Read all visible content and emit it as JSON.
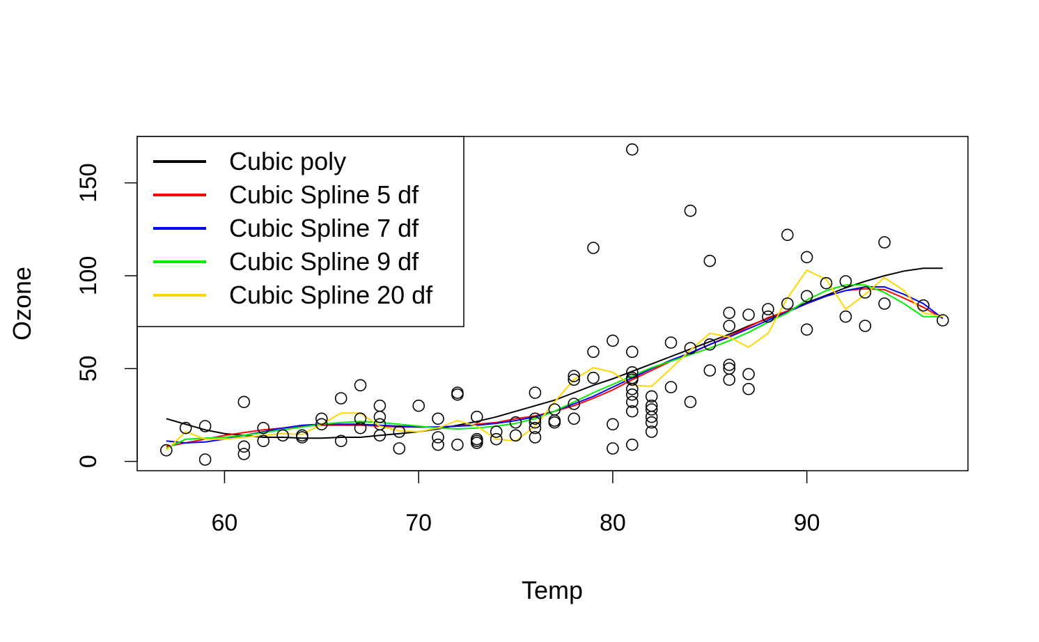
{
  "chart_data": {
    "type": "scatter",
    "title": "",
    "xlabel": "Temp",
    "ylabel": "Ozone",
    "xlim": [
      55.5,
      98.3
    ],
    "ylim": [
      -5,
      175
    ],
    "x_ticks": [
      60,
      70,
      80,
      90
    ],
    "y_ticks": [
      0,
      50,
      100,
      150
    ],
    "grid": false,
    "legend_position": "top-left",
    "points": [
      {
        "x": 57,
        "y": 6
      },
      {
        "x": 58,
        "y": 18
      },
      {
        "x": 59,
        "y": 19
      },
      {
        "x": 59,
        "y": 1
      },
      {
        "x": 61,
        "y": 32
      },
      {
        "x": 61,
        "y": 8
      },
      {
        "x": 61,
        "y": 4
      },
      {
        "x": 62,
        "y": 18
      },
      {
        "x": 62,
        "y": 11
      },
      {
        "x": 63,
        "y": 14
      },
      {
        "x": 64,
        "y": 14
      },
      {
        "x": 64,
        "y": 13
      },
      {
        "x": 65,
        "y": 23
      },
      {
        "x": 65,
        "y": 20
      },
      {
        "x": 66,
        "y": 34
      },
      {
        "x": 66,
        "y": 11
      },
      {
        "x": 67,
        "y": 41
      },
      {
        "x": 67,
        "y": 23
      },
      {
        "x": 67,
        "y": 18
      },
      {
        "x": 68,
        "y": 30
      },
      {
        "x": 68,
        "y": 24
      },
      {
        "x": 68,
        "y": 20
      },
      {
        "x": 68,
        "y": 14
      },
      {
        "x": 69,
        "y": 16
      },
      {
        "x": 69,
        "y": 7
      },
      {
        "x": 70,
        "y": 30
      },
      {
        "x": 71,
        "y": 23
      },
      {
        "x": 71,
        "y": 13
      },
      {
        "x": 71,
        "y": 9
      },
      {
        "x": 72,
        "y": 37
      },
      {
        "x": 72,
        "y": 36
      },
      {
        "x": 72,
        "y": 9
      },
      {
        "x": 73,
        "y": 24
      },
      {
        "x": 73,
        "y": 12
      },
      {
        "x": 73,
        "y": 11
      },
      {
        "x": 73,
        "y": 10
      },
      {
        "x": 74,
        "y": 16
      },
      {
        "x": 74,
        "y": 12
      },
      {
        "x": 75,
        "y": 21
      },
      {
        "x": 75,
        "y": 14
      },
      {
        "x": 76,
        "y": 37
      },
      {
        "x": 76,
        "y": 23
      },
      {
        "x": 76,
        "y": 21
      },
      {
        "x": 76,
        "y": 18
      },
      {
        "x": 76,
        "y": 13
      },
      {
        "x": 77,
        "y": 28
      },
      {
        "x": 77,
        "y": 22
      },
      {
        "x": 77,
        "y": 21
      },
      {
        "x": 78,
        "y": 46
      },
      {
        "x": 78,
        "y": 44
      },
      {
        "x": 78,
        "y": 31
      },
      {
        "x": 78,
        "y": 23
      },
      {
        "x": 79,
        "y": 115
      },
      {
        "x": 79,
        "y": 59
      },
      {
        "x": 79,
        "y": 45
      },
      {
        "x": 80,
        "y": 65
      },
      {
        "x": 80,
        "y": 20
      },
      {
        "x": 80,
        "y": 7
      },
      {
        "x": 81,
        "y": 168
      },
      {
        "x": 81,
        "y": 59
      },
      {
        "x": 81,
        "y": 48
      },
      {
        "x": 81,
        "y": 45
      },
      {
        "x": 81,
        "y": 44
      },
      {
        "x": 81,
        "y": 39
      },
      {
        "x": 81,
        "y": 36
      },
      {
        "x": 81,
        "y": 32
      },
      {
        "x": 81,
        "y": 27
      },
      {
        "x": 81,
        "y": 9
      },
      {
        "x": 82,
        "y": 35
      },
      {
        "x": 82,
        "y": 30
      },
      {
        "x": 82,
        "y": 28
      },
      {
        "x": 82,
        "y": 24
      },
      {
        "x": 82,
        "y": 21
      },
      {
        "x": 82,
        "y": 16
      },
      {
        "x": 83,
        "y": 64
      },
      {
        "x": 83,
        "y": 40
      },
      {
        "x": 84,
        "y": 135
      },
      {
        "x": 84,
        "y": 61
      },
      {
        "x": 84,
        "y": 32
      },
      {
        "x": 85,
        "y": 108
      },
      {
        "x": 85,
        "y": 63
      },
      {
        "x": 85,
        "y": 49
      },
      {
        "x": 86,
        "y": 80
      },
      {
        "x": 86,
        "y": 73
      },
      {
        "x": 86,
        "y": 52
      },
      {
        "x": 86,
        "y": 50
      },
      {
        "x": 86,
        "y": 44
      },
      {
        "x": 87,
        "y": 79
      },
      {
        "x": 87,
        "y": 47
      },
      {
        "x": 87,
        "y": 39
      },
      {
        "x": 88,
        "y": 82
      },
      {
        "x": 88,
        "y": 78
      },
      {
        "x": 89,
        "y": 122
      },
      {
        "x": 89,
        "y": 85
      },
      {
        "x": 90,
        "y": 110
      },
      {
        "x": 90,
        "y": 89
      },
      {
        "x": 90,
        "y": 71
      },
      {
        "x": 91,
        "y": 96
      },
      {
        "x": 92,
        "y": 97
      },
      {
        "x": 92,
        "y": 78
      },
      {
        "x": 93,
        "y": 91
      },
      {
        "x": 93,
        "y": 73
      },
      {
        "x": 94,
        "y": 118
      },
      {
        "x": 94,
        "y": 85
      },
      {
        "x": 96,
        "y": 84
      },
      {
        "x": 97,
        "y": 76
      }
    ],
    "series": [
      {
        "name": "Cubic poly",
        "color": "#000000",
        "x": [
          57,
          58,
          59,
          60,
          61,
          62,
          63,
          64,
          65,
          66,
          67,
          68,
          69,
          70,
          71,
          72,
          73,
          74,
          75,
          76,
          77,
          78,
          79,
          80,
          81,
          82,
          83,
          84,
          85,
          86,
          87,
          88,
          89,
          90,
          91,
          92,
          93,
          94,
          95,
          96,
          97
        ],
        "y": [
          23,
          20,
          17,
          15,
          14,
          13,
          13,
          12.5,
          12.5,
          13,
          13,
          14,
          15,
          16,
          17.5,
          19.5,
          21.5,
          24,
          27,
          30,
          33,
          37,
          41,
          44.5,
          48.5,
          52.5,
          56.5,
          60.5,
          64.5,
          68.5,
          73,
          77,
          81,
          85.5,
          89.5,
          93.5,
          97,
          100,
          102.5,
          104,
          104
        ]
      },
      {
        "name": "Cubic Spline 5 df",
        "color": "#ff0000",
        "x": [
          57,
          58,
          59,
          60,
          61,
          62,
          63,
          64,
          65,
          66,
          67,
          68,
          69,
          70,
          71,
          72,
          73,
          74,
          75,
          76,
          77,
          78,
          79,
          80,
          81,
          82,
          83,
          84,
          85,
          86,
          87,
          88,
          89,
          90,
          91,
          92,
          93,
          94,
          95,
          96,
          97
        ],
        "y": [
          8,
          10,
          12,
          14,
          15.5,
          17,
          18,
          19,
          19.5,
          19.5,
          19.5,
          19,
          18.5,
          18.5,
          18.5,
          19,
          20,
          21,
          23,
          24.5,
          27,
          30,
          34,
          38.5,
          44,
          49,
          54,
          58,
          63,
          67.5,
          72.5,
          77.5,
          81,
          85,
          89,
          92,
          93,
          92.5,
          88,
          83,
          77
        ]
      },
      {
        "name": "Cubic Spline 7 df",
        "color": "#0000ff",
        "x": [
          57,
          58,
          59,
          60,
          61,
          62,
          63,
          64,
          65,
          66,
          67,
          68,
          69,
          70,
          71,
          72,
          73,
          74,
          75,
          76,
          77,
          78,
          79,
          80,
          81,
          82,
          83,
          84,
          85,
          86,
          87,
          88,
          89,
          90,
          91,
          92,
          93,
          94,
          95,
          96,
          97
        ],
        "y": [
          11,
          10,
          10.5,
          12,
          14,
          16,
          18,
          19.5,
          20,
          20,
          20,
          19.5,
          19,
          18.5,
          18.5,
          19,
          19.5,
          20.5,
          22,
          24,
          27,
          31,
          35,
          40,
          45,
          50,
          54.5,
          58.5,
          63,
          67,
          71.5,
          76,
          80.5,
          85,
          89,
          92,
          94,
          94,
          90,
          85,
          77
        ]
      },
      {
        "name": "Cubic Spline 9 df",
        "color": "#00ee00",
        "x": [
          57,
          58,
          59,
          60,
          61,
          62,
          63,
          64,
          65,
          66,
          67,
          68,
          69,
          70,
          71,
          72,
          73,
          74,
          75,
          76,
          77,
          78,
          79,
          80,
          81,
          82,
          83,
          84,
          85,
          86,
          87,
          88,
          89,
          90,
          91,
          92,
          93,
          94,
          95,
          96,
          97
        ],
        "y": [
          7,
          12,
          12.5,
          13,
          14,
          15.5,
          17,
          18.5,
          20,
          21,
          21.5,
          21,
          20,
          19,
          18,
          17.5,
          18,
          19,
          20.5,
          23,
          27,
          32,
          37,
          41.5,
          46,
          50.5,
          54,
          57.5,
          61,
          65,
          69.5,
          75,
          80,
          87,
          92,
          95,
          95,
          91,
          85,
          78,
          78
        ]
      },
      {
        "name": "Cubic Spline 20 df",
        "color": "#ffd700",
        "x": [
          57,
          58,
          59,
          60,
          61,
          62,
          63,
          64,
          65,
          66,
          67,
          68,
          69,
          70,
          71,
          72,
          73,
          74,
          75,
          76,
          77,
          78,
          79,
          80,
          81,
          82,
          83,
          84,
          85,
          86,
          87,
          88,
          89,
          90,
          91,
          92,
          93,
          94,
          95,
          96,
          97
        ],
        "y": [
          6,
          16,
          12,
          12,
          13,
          14,
          15,
          14.5,
          20,
          26,
          26,
          19,
          16.5,
          16,
          18,
          22,
          19,
          12,
          11,
          19,
          32,
          44,
          50.5,
          48,
          41,
          40.5,
          50,
          60,
          69,
          67,
          61.5,
          69,
          88,
          103,
          98,
          82,
          90,
          99,
          92,
          80,
          78
        ]
      }
    ]
  }
}
